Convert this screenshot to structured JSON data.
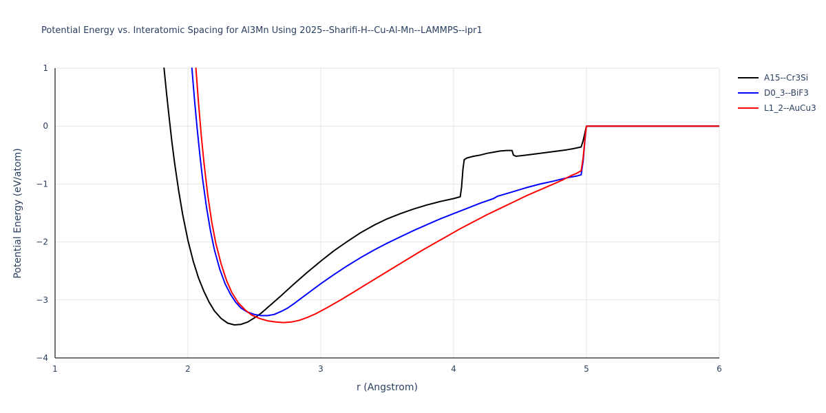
{
  "title": "Potential Energy vs. Interatomic Spacing for Al3Mn Using 2025--Sharifi-H--Cu-Al-Mn--LAMMPS--ipr1",
  "axes": {
    "x_label": "r (Angstrom)",
    "y_label": "Potential Energy (eV/atom)"
  },
  "theme": {
    "text_color": "#2a3f5f",
    "grid_color": "#e5e5e5",
    "axis_color": "#444444",
    "background": "#ffffff"
  },
  "chart_data": {
    "type": "line",
    "title": "Potential Energy vs. Interatomic Spacing for Al3Mn Using 2025--Sharifi-H--Cu-Al-Mn--LAMMPS--ipr1",
    "xlabel": "r (Angstrom)",
    "ylabel": "Potential Energy (eV/atom)",
    "xlim": [
      1,
      6
    ],
    "ylim": [
      -4,
      1
    ],
    "x_ticks": [
      1,
      2,
      3,
      4,
      5,
      6
    ],
    "y_ticks": [
      -4,
      -3,
      -2,
      -1,
      0,
      1
    ],
    "grid": true,
    "legend_position": "top-right-outside",
    "series": [
      {
        "name": "A15--Cr3Si",
        "color": "#000000",
        "points": [
          [
            1.82,
            1.0
          ],
          [
            1.84,
            0.55
          ],
          [
            1.86,
            0.12
          ],
          [
            1.88,
            -0.28
          ],
          [
            1.9,
            -0.64
          ],
          [
            1.93,
            -1.11
          ],
          [
            1.96,
            -1.52
          ],
          [
            2.0,
            -1.97
          ],
          [
            2.04,
            -2.33
          ],
          [
            2.08,
            -2.62
          ],
          [
            2.12,
            -2.85
          ],
          [
            2.16,
            -3.04
          ],
          [
            2.2,
            -3.19
          ],
          [
            2.25,
            -3.32
          ],
          [
            2.3,
            -3.4
          ],
          [
            2.35,
            -3.43
          ],
          [
            2.4,
            -3.42
          ],
          [
            2.45,
            -3.38
          ],
          [
            2.5,
            -3.31
          ],
          [
            2.55,
            -3.23
          ],
          [
            2.6,
            -3.13
          ],
          [
            2.7,
            -2.93
          ],
          [
            2.8,
            -2.72
          ],
          [
            2.9,
            -2.52
          ],
          [
            3.0,
            -2.33
          ],
          [
            3.1,
            -2.15
          ],
          [
            3.2,
            -1.99
          ],
          [
            3.3,
            -1.84
          ],
          [
            3.4,
            -1.71
          ],
          [
            3.5,
            -1.6
          ],
          [
            3.6,
            -1.51
          ],
          [
            3.7,
            -1.43
          ],
          [
            3.8,
            -1.36
          ],
          [
            3.9,
            -1.3
          ],
          [
            4.0,
            -1.25
          ],
          [
            4.05,
            -1.22
          ],
          [
            4.06,
            -1.05
          ],
          [
            4.07,
            -0.75
          ],
          [
            4.08,
            -0.58
          ],
          [
            4.1,
            -0.55
          ],
          [
            4.15,
            -0.52
          ],
          [
            4.2,
            -0.5
          ],
          [
            4.25,
            -0.47
          ],
          [
            4.3,
            -0.45
          ],
          [
            4.35,
            -0.43
          ],
          [
            4.4,
            -0.42
          ],
          [
            4.44,
            -0.42
          ],
          [
            4.45,
            -0.5
          ],
          [
            4.47,
            -0.52
          ],
          [
            4.55,
            -0.5
          ],
          [
            4.65,
            -0.47
          ],
          [
            4.75,
            -0.44
          ],
          [
            4.85,
            -0.41
          ],
          [
            4.9,
            -0.39
          ],
          [
            4.94,
            -0.37
          ],
          [
            4.96,
            -0.36
          ],
          [
            4.975,
            -0.25
          ],
          [
            4.99,
            -0.1
          ],
          [
            5.0,
            0.0
          ],
          [
            6.0,
            0.0
          ]
        ]
      },
      {
        "name": "D0_3--BiF3",
        "color": "#0000ff",
        "points": [
          [
            2.03,
            1.0
          ],
          [
            2.05,
            0.45
          ],
          [
            2.07,
            -0.05
          ],
          [
            2.09,
            -0.5
          ],
          [
            2.11,
            -0.9
          ],
          [
            2.14,
            -1.4
          ],
          [
            2.17,
            -1.81
          ],
          [
            2.2,
            -2.14
          ],
          [
            2.24,
            -2.47
          ],
          [
            2.28,
            -2.72
          ],
          [
            2.32,
            -2.9
          ],
          [
            2.36,
            -3.04
          ],
          [
            2.4,
            -3.14
          ],
          [
            2.45,
            -3.21
          ],
          [
            2.5,
            -3.25
          ],
          [
            2.55,
            -3.27
          ],
          [
            2.6,
            -3.27
          ],
          [
            2.65,
            -3.25
          ],
          [
            2.7,
            -3.2
          ],
          [
            2.75,
            -3.14
          ],
          [
            2.8,
            -3.06
          ],
          [
            2.9,
            -2.89
          ],
          [
            3.0,
            -2.72
          ],
          [
            3.1,
            -2.56
          ],
          [
            3.2,
            -2.41
          ],
          [
            3.3,
            -2.27
          ],
          [
            3.4,
            -2.14
          ],
          [
            3.5,
            -2.02
          ],
          [
            3.6,
            -1.91
          ],
          [
            3.7,
            -1.8
          ],
          [
            3.8,
            -1.7
          ],
          [
            3.9,
            -1.6
          ],
          [
            4.0,
            -1.51
          ],
          [
            4.1,
            -1.42
          ],
          [
            4.2,
            -1.33
          ],
          [
            4.3,
            -1.25
          ],
          [
            4.33,
            -1.21
          ],
          [
            4.36,
            -1.19
          ],
          [
            4.45,
            -1.13
          ],
          [
            4.55,
            -1.06
          ],
          [
            4.65,
            -1.0
          ],
          [
            4.75,
            -0.95
          ],
          [
            4.82,
            -0.91
          ],
          [
            4.88,
            -0.88
          ],
          [
            4.93,
            -0.86
          ],
          [
            4.96,
            -0.84
          ],
          [
            4.975,
            -0.6
          ],
          [
            4.99,
            -0.2
          ],
          [
            5.0,
            0.0
          ],
          [
            6.0,
            0.0
          ]
        ]
      },
      {
        "name": "L1_2--AuCu3",
        "color": "#ff0000",
        "points": [
          [
            2.06,
            1.0
          ],
          [
            2.08,
            0.4
          ],
          [
            2.1,
            -0.15
          ],
          [
            2.12,
            -0.62
          ],
          [
            2.15,
            -1.2
          ],
          [
            2.18,
            -1.66
          ],
          [
            2.21,
            -2.02
          ],
          [
            2.25,
            -2.38
          ],
          [
            2.29,
            -2.66
          ],
          [
            2.33,
            -2.87
          ],
          [
            2.38,
            -3.05
          ],
          [
            2.43,
            -3.17
          ],
          [
            2.48,
            -3.26
          ],
          [
            2.54,
            -3.32
          ],
          [
            2.6,
            -3.36
          ],
          [
            2.66,
            -3.38
          ],
          [
            2.72,
            -3.39
          ],
          [
            2.78,
            -3.38
          ],
          [
            2.84,
            -3.35
          ],
          [
            2.9,
            -3.3
          ],
          [
            2.96,
            -3.24
          ],
          [
            3.05,
            -3.13
          ],
          [
            3.15,
            -3.0
          ],
          [
            3.25,
            -2.86
          ],
          [
            3.35,
            -2.72
          ],
          [
            3.45,
            -2.58
          ],
          [
            3.55,
            -2.44
          ],
          [
            3.65,
            -2.3
          ],
          [
            3.75,
            -2.16
          ],
          [
            3.85,
            -2.03
          ],
          [
            3.95,
            -1.9
          ],
          [
            4.05,
            -1.77
          ],
          [
            4.15,
            -1.65
          ],
          [
            4.25,
            -1.53
          ],
          [
            4.35,
            -1.42
          ],
          [
            4.45,
            -1.31
          ],
          [
            4.55,
            -1.2
          ],
          [
            4.65,
            -1.1
          ],
          [
            4.75,
            -1.0
          ],
          [
            4.82,
            -0.93
          ],
          [
            4.88,
            -0.86
          ],
          [
            4.93,
            -0.81
          ],
          [
            4.96,
            -0.77
          ],
          [
            4.975,
            -0.55
          ],
          [
            4.99,
            -0.18
          ],
          [
            5.0,
            0.0
          ],
          [
            6.0,
            0.0
          ]
        ]
      }
    ]
  }
}
